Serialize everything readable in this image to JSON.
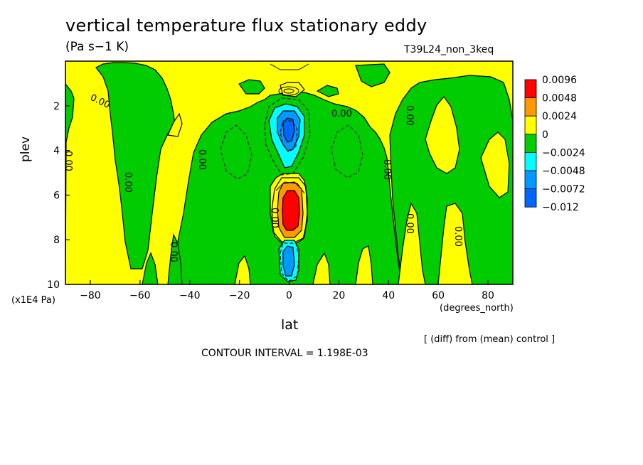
{
  "chart_data": {
    "type": "heatmap",
    "title": "vertical temperature flux stationary eddy",
    "units": "(Pa s−1 K)",
    "run_label": "T39L24_non_3keq",
    "xlabel": "lat",
    "x_unit": "(degrees_north)",
    "ylabel": "plev",
    "y_unit": "(x1E4 Pa)",
    "xlim": [
      -90,
      90
    ],
    "ylim": [
      10,
      0
    ],
    "x_ticks": [
      "−80",
      "−60",
      "−40",
      "−20",
      "0",
      "20",
      "40",
      "60",
      "80"
    ],
    "y_ticks": [
      "2",
      "4",
      "6",
      "8",
      "10"
    ],
    "contour_label": "0.00",
    "legend": {
      "placement": "right",
      "levels": [
        "0.0096",
        "0.0048",
        "0.0024",
        "0",
        "−0.0024",
        "−0.0048",
        "−0.0072",
        "−0.012"
      ],
      "colors": [
        "#ff0000",
        "#ff9900",
        "#ffff00",
        "#00cc00",
        "#00ffff",
        "#0099ff",
        "#0066ff"
      ]
    },
    "note": "[ (diff) from (mean) control ]",
    "contour_interval": "CONTOUR INTERVAL = 1.198E-03",
    "colors": {
      "red": "#ff0000",
      "orange": "#ff9900",
      "yellow": "#ffff00",
      "green": "#00cc00",
      "cyan": "#00ffff",
      "lightblue": "#0099ff",
      "blue": "#0066ff"
    }
  }
}
